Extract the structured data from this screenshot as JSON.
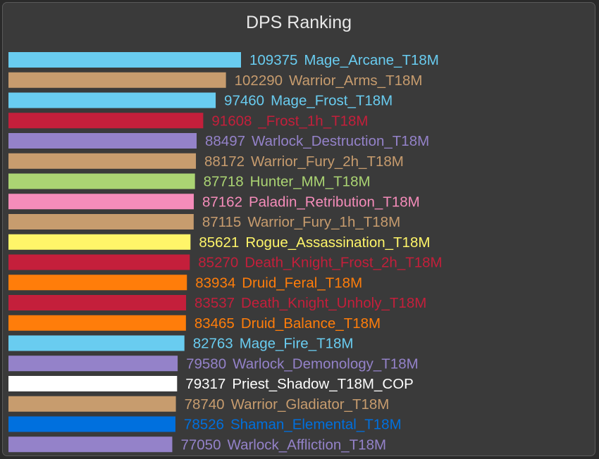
{
  "chart_data": {
    "type": "bar",
    "orientation": "horizontal",
    "title": "DPS Ranking",
    "xlim": [
      0,
      109375
    ],
    "grid": false,
    "legend": "none",
    "bars": [
      {
        "value": 109375,
        "value_label": "109375",
        "name": "Mage_Arcane_T18M",
        "color": "#69ccf0"
      },
      {
        "value": 102290,
        "value_label": "102290",
        "name": "Warrior_Arms_T18M",
        "color": "#c79c6e"
      },
      {
        "value": 97460,
        "value_label": "97460",
        "name": "Mage_Frost_T18M",
        "color": "#69ccf0"
      },
      {
        "value": 91608,
        "value_label": "91608",
        "name": "_Frost_1h_T18M",
        "color": "#c41f3b"
      },
      {
        "value": 88497,
        "value_label": "88497",
        "name": "Warlock_Destruction_T18M",
        "color": "#9482c9"
      },
      {
        "value": 88172,
        "value_label": "88172",
        "name": "Warrior_Fury_2h_T18M",
        "color": "#c79c6e"
      },
      {
        "value": 87718,
        "value_label": "87718",
        "name": "Hunter_MM_T18M",
        "color": "#abd473"
      },
      {
        "value": 87162,
        "value_label": "87162",
        "name": "Paladin_Retribution_T18M",
        "color": "#f58cba"
      },
      {
        "value": 87115,
        "value_label": "87115",
        "name": "Warrior_Fury_1h_T18M",
        "color": "#c79c6e"
      },
      {
        "value": 85621,
        "value_label": "85621",
        "name": "Rogue_Assassination_T18M",
        "color": "#fff569"
      },
      {
        "value": 85270,
        "value_label": "85270",
        "name": "Death_Knight_Frost_2h_T18M",
        "color": "#c41f3b"
      },
      {
        "value": 83934,
        "value_label": "83934",
        "name": "Druid_Feral_T18M",
        "color": "#ff7d0a"
      },
      {
        "value": 83537,
        "value_label": "83537",
        "name": "Death_Knight_Unholy_T18M",
        "color": "#c41f3b"
      },
      {
        "value": 83465,
        "value_label": "83465",
        "name": "Druid_Balance_T18M",
        "color": "#ff7d0a"
      },
      {
        "value": 82763,
        "value_label": "82763",
        "name": "Mage_Fire_T18M",
        "color": "#69ccf0"
      },
      {
        "value": 79580,
        "value_label": "79580",
        "name": "Warlock_Demonology_T18M",
        "color": "#9482c9"
      },
      {
        "value": 79317,
        "value_label": "79317",
        "name": "Priest_Shadow_T18M_COP",
        "color": "#ffffff"
      },
      {
        "value": 78740,
        "value_label": "78740",
        "name": "Warrior_Gladiator_T18M",
        "color": "#c79c6e"
      },
      {
        "value": 78526,
        "value_label": "78526",
        "name": "Shaman_Elemental_T18M",
        "color": "#0070de"
      },
      {
        "value": 77050,
        "value_label": "77050",
        "name": "Warlock_Affliction_T18M",
        "color": "#9482c9"
      }
    ]
  }
}
